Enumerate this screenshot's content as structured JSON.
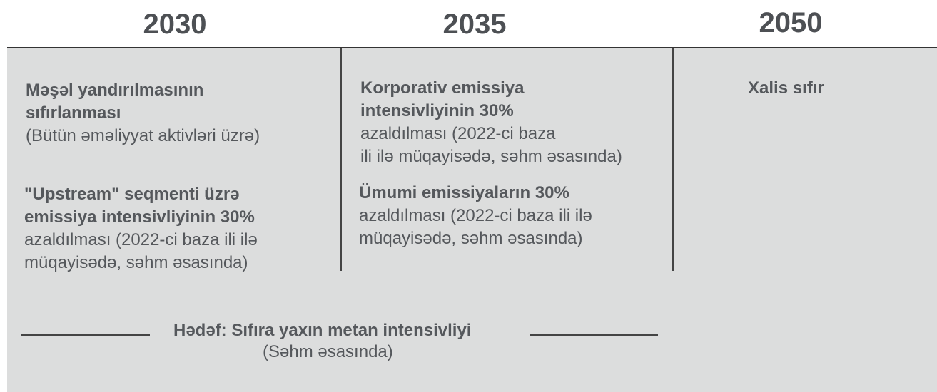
{
  "header": {
    "years": [
      "2030",
      "2035",
      "2050"
    ]
  },
  "columns": [
    {
      "items": [
        {
          "bold": [
            "Məşəl yandırılmasının",
            "sıfırlanması"
          ],
          "normal": [
            "(Bütün əməliyyat aktivləri üzrə)"
          ]
        },
        {
          "bold": [
            "\"Upstream\" seqmenti üzrə",
            "emissiya intensivliyinin 30%"
          ],
          "normal": [
            "azaldılması (2022-ci baza ili ilə",
            "müqayisədə, səhm əsasında)"
          ]
        }
      ]
    },
    {
      "items": [
        {
          "bold": [
            "Korporativ emissiya",
            "intensivliyinin 30%"
          ],
          "normal": [
            "azaldılması (2022-ci baza",
            "ili ilə müqayisədə, səhm əsasında)"
          ]
        },
        {
          "bold": [
            "Ümumi emissiyaların 30%"
          ],
          "normal": [
            "azaldılması (2022-ci baza ili ilə",
            "müqayisədə, səhm əsasında)"
          ]
        }
      ]
    },
    {
      "items": [
        {
          "bold": [
            "Xalis sıfır"
          ],
          "normal": []
        }
      ]
    }
  ],
  "footer": {
    "title": "Hədəf: Sıfıra yaxın metan intensivliyi",
    "subtitle": "(Səhm əsasında)"
  }
}
